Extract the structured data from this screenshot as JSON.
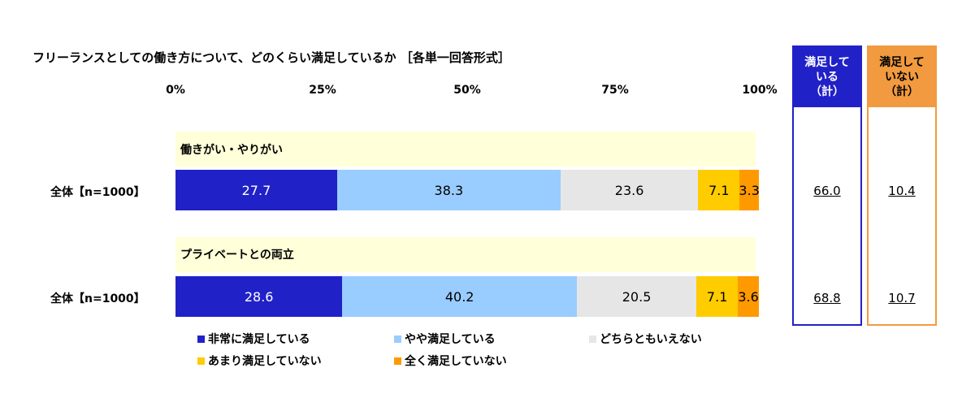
{
  "title": "フリーランスとしての働き方について、どのくらい満足しているか ［各単一回答形式］",
  "chart_data": {
    "type": "bar",
    "orientation": "horizontal-stacked",
    "title": "フリーランスとしての働き方について、どのくらい満足しているか ［各単一回答形式］",
    "xlim": [
      0,
      100
    ],
    "ticks": [
      "0%",
      "25%",
      "50%",
      "75%",
      "100%"
    ],
    "legend": [
      "非常に満足している",
      "やや満足している",
      "どちらともいえない",
      "あまり満足していない",
      "全く満足していない"
    ],
    "colors": [
      "#2121c8",
      "#99ccff",
      "#e6e6e6",
      "#ffcc00",
      "#ff9900"
    ],
    "text_colors": [
      "#ffffff",
      "#000000",
      "#000000",
      "#000000",
      "#000000"
    ],
    "groups": [
      {
        "section": "働きがい・やりがい",
        "row_label": "全体【n=1000】",
        "values": [
          27.7,
          38.3,
          23.6,
          7.1,
          3.3
        ],
        "labels": [
          "27.7",
          "38.3",
          "23.6",
          "7.1",
          "3.3"
        ],
        "satisfied_total": "66.0",
        "unsatisfied_total": "10.4"
      },
      {
        "section": "プライベートとの両立",
        "row_label": "全体【n=1000】",
        "values": [
          28.6,
          40.2,
          20.5,
          7.1,
          3.6
        ],
        "labels": [
          "28.6",
          "40.2",
          "20.5",
          "7.1",
          "3.6"
        ],
        "satisfied_total": "68.8",
        "unsatisfied_total": "10.7"
      }
    ]
  },
  "summary": {
    "satisfied_header": "満足して\nいる\n（計）",
    "unsatisfied_header": "満足して\nいない\n（計）",
    "satisfied_color": "#2121c8",
    "unsatisfied_color": "#f29a3f"
  }
}
